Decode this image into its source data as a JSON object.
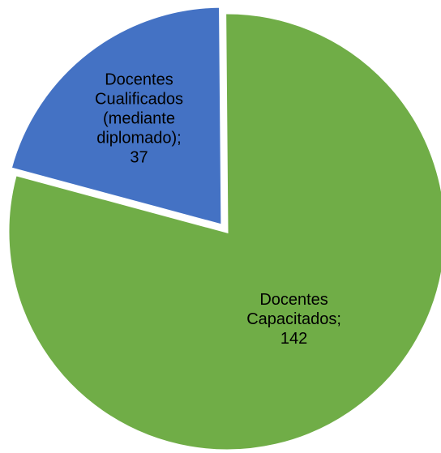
{
  "chart_data": {
    "type": "pie",
    "title": "",
    "start_angle_deg": -0.5,
    "direction": "clockwise",
    "slices": [
      {
        "name": "Docentes Capacitados",
        "value": 142,
        "color": "#70AD47",
        "label_lines": [
          "Docentes",
          "Capacitados;",
          "142"
        ]
      },
      {
        "name": "Docentes Cualificados (mediante diplomado)",
        "value": 37,
        "color": "#4472C4",
        "exploded": true,
        "label_lines": [
          "Docentes",
          "Cualificados",
          "(mediante",
          "diplomado);",
          "37"
        ]
      }
    ]
  }
}
